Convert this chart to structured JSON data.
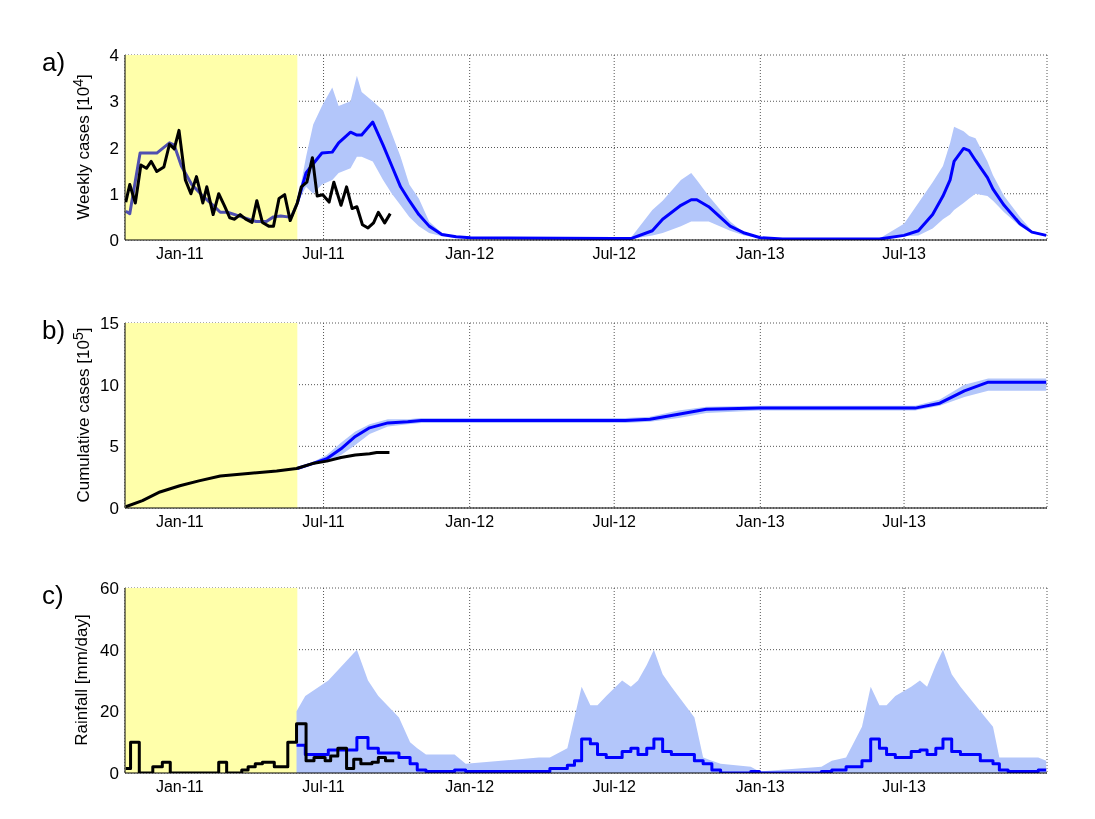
{
  "chart_data": [
    {
      "type": "line",
      "title": "a)",
      "ylabel": "Weekly cases [10$^{4}$]",
      "xlim": [
        "2010-10-24",
        "2013-12-28"
      ],
      "ylim": [
        0,
        4
      ],
      "yticks": [
        0,
        1,
        2,
        3,
        4
      ],
      "xticks": [
        {
          "value": "2011-01-01",
          "label": "Jan-11"
        },
        {
          "value": "2011-07-01",
          "label": "Jul-11"
        },
        {
          "value": "2012-01-01",
          "label": "Jan-12"
        },
        {
          "value": "2012-07-01",
          "label": "Jul-12"
        },
        {
          "value": "2013-01-01",
          "label": "Jan-13"
        },
        {
          "value": "2013-07-01",
          "label": "Jul-13"
        }
      ],
      "grid": true,
      "bands": [
        {
          "axis": "x",
          "from": "2010-10-24",
          "to": "2011-05-29",
          "color": "#ffffaa"
        }
      ],
      "series": [
        {
          "color": "#0000ff",
          "x": [
            "2011-05-29",
            "2011-06-09",
            "2011-06-18",
            "2011-06-29",
            "2011-07-12",
            "2011-07-20",
            "2011-08-04",
            "2011-08-12",
            "2011-08-18",
            "2011-09-01",
            "2011-09-14",
            "2011-09-25",
            "2011-10-06",
            "2011-10-17",
            "2011-10-29",
            "2011-11-11",
            "2011-11-27",
            "2011-12-15",
            "2012-01-02",
            "2012-07-01",
            "2012-07-22",
            "2012-08-18",
            "2012-08-31",
            "2012-09-23",
            "2012-10-06",
            "2012-10-13",
            "2012-10-28",
            "2012-11-24",
            "2012-12-12",
            "2013-01-01",
            "2013-01-29",
            "2013-05-31",
            "2013-07-01",
            "2013-07-19",
            "2013-08-06",
            "2013-08-19",
            "2013-08-28",
            "2013-09-02",
            "2013-09-14",
            "2013-09-21",
            "2013-09-29",
            "2013-10-14",
            "2013-10-21",
            "2013-11-04",
            "2013-11-24",
            "2013-12-09",
            "2013-12-27"
          ],
          "values": [
            0.8,
            1.45,
            1.65,
            1.88,
            1.9,
            2.1,
            2.33,
            2.27,
            2.27,
            2.55,
            2.05,
            1.6,
            1.15,
            0.85,
            0.55,
            0.3,
            0.12,
            0.07,
            0.05,
            0.03,
            0.03,
            0.2,
            0.45,
            0.75,
            0.87,
            0.87,
            0.72,
            0.3,
            0.15,
            0.05,
            0.02,
            0.02,
            0.1,
            0.2,
            0.55,
            0.95,
            1.3,
            1.7,
            1.98,
            1.93,
            1.72,
            1.35,
            1.1,
            0.75,
            0.35,
            0.17,
            0.1
          ],
          "lower": [
            0.8,
            1.15,
            1.0,
            1.2,
            1.3,
            1.45,
            1.55,
            1.8,
            1.8,
            1.7,
            1.3,
            1.0,
            0.75,
            0.5,
            0.3,
            0.15,
            0.08,
            0.05,
            0.04,
            0.02,
            0.02,
            0.1,
            0.15,
            0.3,
            0.4,
            0.4,
            0.4,
            0.2,
            0.1,
            0.04,
            0.02,
            0.02,
            0.08,
            0.1,
            0.25,
            0.45,
            0.55,
            0.65,
            0.8,
            0.9,
            1.0,
            0.95,
            0.85,
            0.6,
            0.3,
            0.15,
            0.08
          ],
          "upper": [
            0.8,
            1.8,
            2.5,
            2.9,
            3.3,
            2.9,
            3.0,
            3.55,
            3.2,
            3.0,
            2.8,
            2.3,
            1.8,
            1.2,
            0.9,
            0.4,
            0.15,
            0.08,
            0.05,
            0.03,
            0.05,
            0.65,
            0.85,
            1.3,
            1.45,
            1.3,
            0.95,
            0.4,
            0.15,
            0.07,
            0.02,
            0.03,
            0.35,
            0.8,
            1.25,
            1.6,
            2.1,
            2.45,
            2.35,
            2.25,
            2.2,
            1.7,
            1.4,
            0.95,
            0.5,
            0.2,
            0.12
          ]
        },
        {
          "color": "#5050b0",
          "x": [
            "2010-10-25",
            "2010-10-30",
            "2010-11-12",
            "2010-12-03",
            "2010-12-19",
            "2010-12-25",
            "2011-01-03",
            "2011-01-16",
            "2011-01-30",
            "2011-02-12",
            "2011-02-21",
            "2011-03-02",
            "2011-03-20",
            "2011-04-07",
            "2011-04-20",
            "2011-04-29",
            "2011-05-08",
            "2011-05-17",
            "2011-05-22",
            "2011-05-29"
          ],
          "values": [
            0.62,
            0.57,
            1.88,
            1.88,
            2.1,
            2.05,
            1.6,
            1.2,
            0.95,
            0.75,
            0.6,
            0.6,
            0.5,
            0.4,
            0.4,
            0.5,
            0.52,
            0.5,
            0.52,
            0.8
          ]
        },
        {
          "color": "#000000",
          "x": [
            "2010-10-25",
            "2010-10-30",
            "2010-11-06",
            "2010-11-13",
            "2010-11-20",
            "2010-11-26",
            "2010-12-03",
            "2010-12-12",
            "2010-12-19",
            "2010-12-25",
            "2010-12-31",
            "2011-01-08",
            "2011-01-15",
            "2011-01-22",
            "2011-01-30",
            "2011-02-04",
            "2011-02-12",
            "2011-02-19",
            "2011-02-26",
            "2011-03-05",
            "2011-03-11",
            "2011-03-18",
            "2011-03-25",
            "2011-04-02",
            "2011-04-08",
            "2011-04-15",
            "2011-04-23",
            "2011-04-29",
            "2011-05-06",
            "2011-05-13",
            "2011-05-20",
            "2011-05-29",
            "2011-06-03",
            "2011-06-10",
            "2011-06-17",
            "2011-06-23",
            "2011-06-30",
            "2011-07-08",
            "2011-07-14",
            "2011-07-23",
            "2011-07-30",
            "2011-08-06",
            "2011-08-12",
            "2011-08-19",
            "2011-08-26",
            "2011-09-02",
            "2011-09-08",
            "2011-09-16",
            "2011-09-23"
          ],
          "values": [
            0.82,
            1.2,
            0.8,
            1.62,
            1.55,
            1.7,
            1.48,
            1.58,
            2.07,
            1.97,
            2.37,
            1.3,
            1.0,
            1.37,
            0.8,
            1.15,
            0.55,
            1.0,
            0.75,
            0.48,
            0.45,
            0.55,
            0.45,
            0.38,
            0.85,
            0.38,
            0.3,
            0.3,
            0.9,
            0.98,
            0.42,
            0.8,
            1.15,
            1.25,
            1.78,
            0.95,
            0.98,
            0.82,
            1.25,
            0.75,
            1.15,
            0.68,
            0.72,
            0.33,
            0.26,
            0.37,
            0.6,
            0.37,
            0.57
          ]
        }
      ]
    },
    {
      "type": "line",
      "title": "b)",
      "ylabel": "Cumulative cases [10$^{5}$]",
      "xlim": [
        "2010-10-24",
        "2013-12-28"
      ],
      "ylim": [
        0,
        15
      ],
      "yticks": [
        0,
        5,
        10,
        15
      ],
      "xticks": [
        {
          "value": "2011-01-01",
          "label": "Jan-11"
        },
        {
          "value": "2011-07-01",
          "label": "Jul-11"
        },
        {
          "value": "2012-01-01",
          "label": "Jan-12"
        },
        {
          "value": "2012-07-01",
          "label": "Jul-12"
        },
        {
          "value": "2013-01-01",
          "label": "Jan-13"
        },
        {
          "value": "2013-07-01",
          "label": "Jul-13"
        }
      ],
      "grid": true,
      "bands": [
        {
          "axis": "x",
          "from": "2010-10-24",
          "to": "2011-05-29",
          "color": "#ffffaa"
        }
      ],
      "series": [
        {
          "color": "#0000ff",
          "x": [
            "2011-05-29",
            "2011-06-17",
            "2011-07-05",
            "2011-07-23",
            "2011-08-10",
            "2011-08-28",
            "2011-09-20",
            "2011-10-15",
            "2011-11-01",
            "2012-07-15",
            "2012-08-15",
            "2012-09-20",
            "2012-10-25",
            "2013-01-01",
            "2013-07-15",
            "2013-08-15",
            "2013-09-15",
            "2013-10-15",
            "2013-12-27"
          ],
          "values": [
            3.2,
            3.6,
            4.0,
            4.8,
            5.8,
            6.5,
            6.9,
            7.0,
            7.1,
            7.1,
            7.2,
            7.6,
            8.0,
            8.1,
            8.1,
            8.5,
            9.5,
            10.2,
            10.2
          ],
          "lower": [
            3.2,
            3.55,
            3.8,
            4.3,
            5.1,
            6.0,
            6.6,
            6.8,
            6.9,
            6.9,
            7.0,
            7.3,
            7.7,
            7.9,
            7.9,
            8.3,
            9.0,
            9.5,
            9.5
          ],
          "upper": [
            3.2,
            3.7,
            4.3,
            5.3,
            6.2,
            6.8,
            7.2,
            7.2,
            7.3,
            7.3,
            7.4,
            7.9,
            8.2,
            8.3,
            8.3,
            8.8,
            10.0,
            10.5,
            10.5
          ]
        },
        {
          "color": "#000000",
          "x": [
            "2010-10-25",
            "2010-11-15",
            "2010-12-07",
            "2011-01-01",
            "2011-01-25",
            "2011-02-21",
            "2011-03-28",
            "2011-05-03",
            "2011-05-28",
            "2011-06-17",
            "2011-07-05",
            "2011-07-23",
            "2011-08-10",
            "2011-08-28",
            "2011-09-06",
            "2011-09-22"
          ],
          "values": [
            0.1,
            0.6,
            1.3,
            1.8,
            2.2,
            2.6,
            2.8,
            3.0,
            3.2,
            3.6,
            3.8,
            4.1,
            4.3,
            4.4,
            4.5,
            4.5
          ]
        }
      ]
    },
    {
      "type": "step",
      "title": "c)",
      "ylabel": "Rainfall [mm/day]",
      "xlim": [
        "2010-10-24",
        "2013-12-28"
      ],
      "ylim": [
        0,
        60
      ],
      "yticks": [
        0,
        20,
        40,
        60
      ],
      "xticks": [
        {
          "value": "2011-01-01",
          "label": "Jan-11"
        },
        {
          "value": "2011-07-01",
          "label": "Jul-11"
        },
        {
          "value": "2012-01-01",
          "label": "Jan-12"
        },
        {
          "value": "2012-07-01",
          "label": "Jul-12"
        },
        {
          "value": "2013-01-01",
          "label": "Jan-13"
        },
        {
          "value": "2013-07-01",
          "label": "Jul-13"
        }
      ],
      "grid": true,
      "bands": [
        {
          "axis": "x",
          "from": "2010-10-24",
          "to": "2011-05-29",
          "color": "#ffffaa"
        }
      ],
      "series": [
        {
          "color": "#0000ff",
          "x": [
            "2011-05-28",
            "2011-06-08",
            "2011-07-07",
            "2011-08-12",
            "2011-08-26",
            "2011-09-08",
            "2011-10-04",
            "2011-10-18",
            "2011-10-27",
            "2011-11-07",
            "2011-12-13",
            "2011-12-27",
            "2012-03-28",
            "2012-04-11",
            "2012-05-03",
            "2012-05-12",
            "2012-05-21",
            "2012-06-01",
            "2012-06-10",
            "2012-06-21",
            "2012-07-11",
            "2012-07-22",
            "2012-07-31",
            "2012-08-11",
            "2012-08-20",
            "2012-08-31",
            "2012-09-11",
            "2012-10-10",
            "2012-10-21",
            "2012-11-01",
            "2012-11-12",
            "2012-12-20",
            "2012-12-31",
            "2013-03-19",
            "2013-04-01",
            "2013-04-19",
            "2013-05-09",
            "2013-05-20",
            "2013-05-31",
            "2013-06-09",
            "2013-06-20",
            "2013-07-10",
            "2013-07-21",
            "2013-07-30",
            "2013-08-10",
            "2013-08-19",
            "2013-08-30",
            "2013-09-10",
            "2013-10-05",
            "2013-10-21",
            "2013-10-29",
            "2013-11-09",
            "2013-12-17",
            "2013-12-27"
          ],
          "values": [
            9,
            6,
            7.5,
            11.5,
            8,
            6.5,
            5,
            3,
            1,
            0.5,
            1,
            0.5,
            0.5,
            1.5,
            2.5,
            4,
            11,
            9.5,
            6,
            5,
            7,
            8,
            6,
            8,
            11,
            7,
            6,
            4,
            3,
            1,
            0,
            0.5,
            0,
            0.5,
            1,
            2,
            4,
            11,
            8,
            6,
            5,
            7,
            7.5,
            6,
            8,
            11,
            7,
            6,
            4,
            3,
            1,
            0.5,
            1,
            1
          ],
          "lower": [
            0,
            0,
            0,
            0,
            0,
            0,
            0,
            0,
            0,
            0,
            0,
            0,
            0,
            0,
            0,
            0,
            0,
            0,
            0,
            0,
            0,
            0,
            0,
            0,
            0,
            0,
            0,
            0,
            0,
            0,
            0,
            0,
            0,
            0,
            0,
            0,
            0,
            0,
            0,
            0,
            0,
            0,
            0,
            0,
            0,
            0,
            0,
            0,
            0,
            0,
            0,
            0,
            0,
            0
          ],
          "upper": [
            20,
            25,
            30,
            40,
            30,
            25,
            18,
            10,
            8,
            6,
            6,
            3,
            5,
            5,
            8,
            18,
            28,
            22,
            22,
            25,
            30,
            28,
            30,
            35,
            40,
            32,
            28,
            18,
            5,
            4,
            3,
            2,
            0.5,
            2,
            4,
            5,
            15,
            28,
            22,
            22,
            25,
            28,
            30,
            28,
            35,
            40,
            32,
            28,
            20,
            15,
            5,
            5,
            5,
            4
          ]
        },
        {
          "color": "#000000",
          "x": [
            "2010-10-25",
            "2010-10-31",
            "2010-11-11",
            "2010-11-28",
            "2010-12-10",
            "2010-12-20",
            "2011-02-19",
            "2011-03-01",
            "2011-03-20",
            "2011-03-28",
            "2011-04-06",
            "2011-04-15",
            "2011-04-30",
            "2011-05-17",
            "2011-05-28",
            "2011-06-09",
            "2011-06-19",
            "2011-07-03",
            "2011-07-10",
            "2011-07-19",
            "2011-07-30",
            "2011-08-08",
            "2011-08-17",
            "2011-08-31",
            "2011-09-08",
            "2011-09-17",
            "2011-09-28"
          ],
          "values": [
            1.5,
            10,
            0,
            2,
            3.5,
            0,
            3.5,
            0,
            1,
            2,
            3,
            3.5,
            2,
            10,
            16,
            4,
            5,
            4,
            5.5,
            8,
            1.5,
            4.5,
            3,
            3.5,
            5,
            4,
            4
          ]
        }
      ]
    }
  ]
}
